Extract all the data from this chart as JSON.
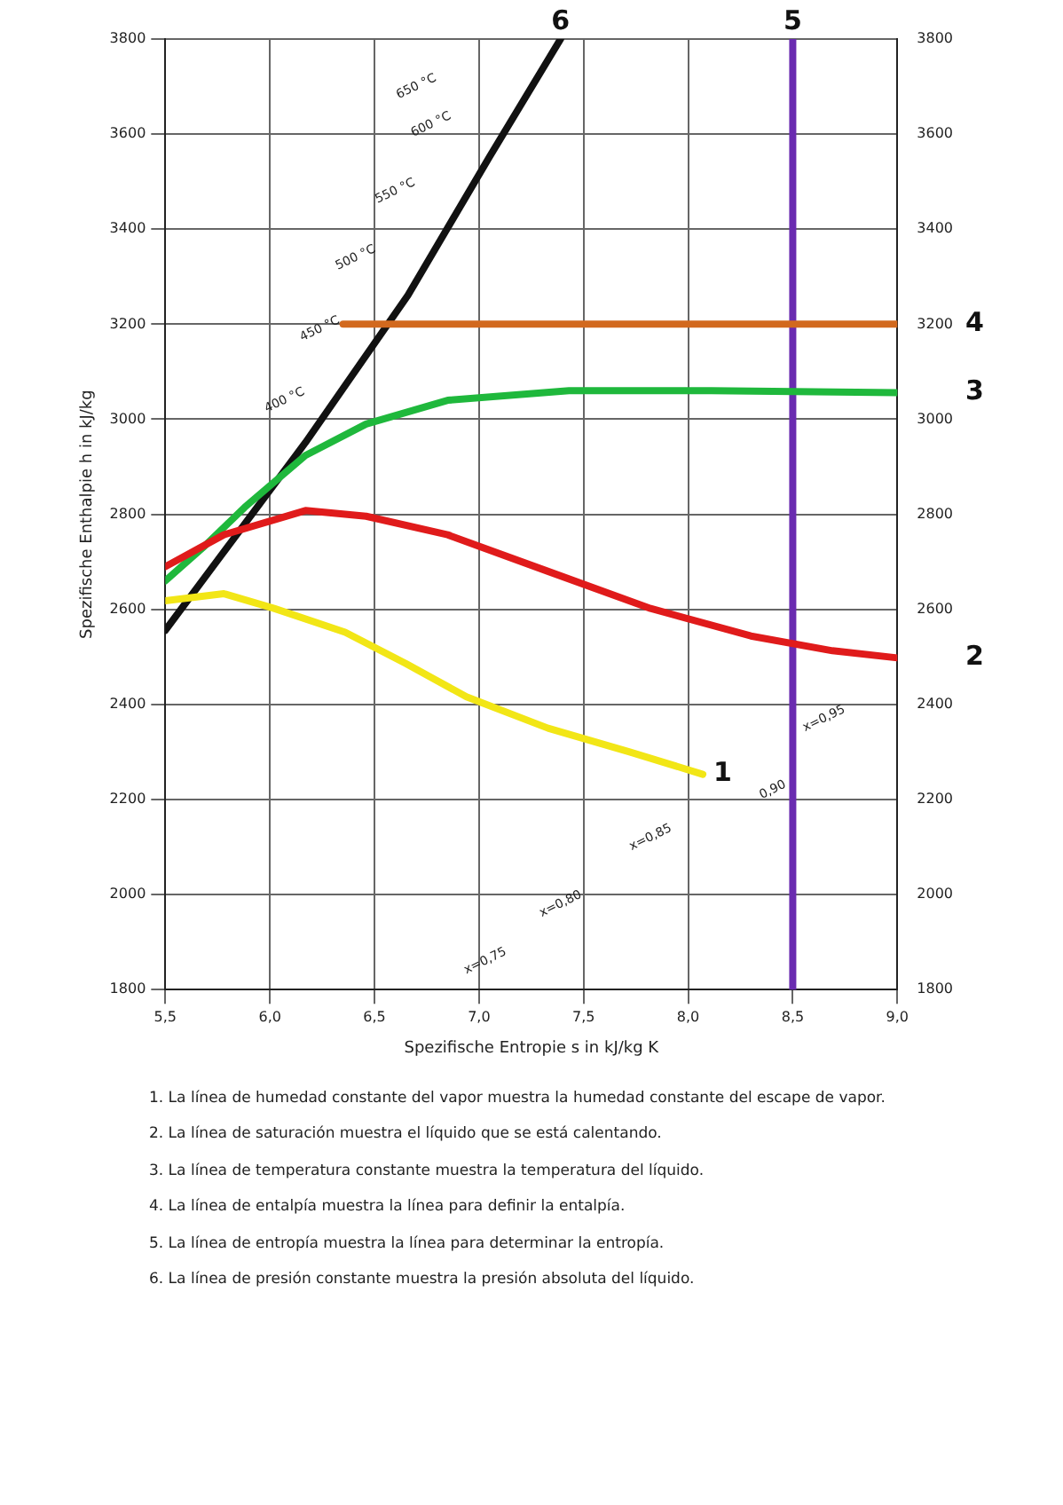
{
  "chart_data": {
    "type": "line",
    "xlabel": "Spezifische Entropie s in kJ/kg K",
    "ylabel": "Spezifische Enthalpie h in kJ/kg",
    "xlim": [
      5.5,
      9.0
    ],
    "xticks": [
      {
        "value": 5.5,
        "label": "5,5"
      },
      {
        "value": 6.0,
        "label": "6,0"
      },
      {
        "value": 6.5,
        "label": "6,5"
      },
      {
        "value": 7.0,
        "label": "7,0"
      },
      {
        "value": 7.5,
        "label": "7,5"
      },
      {
        "value": 8.0,
        "label": "8,0"
      },
      {
        "value": 8.5,
        "label": "8,5"
      },
      {
        "value": 9.0,
        "label": "9,0"
      }
    ],
    "ylim": [
      1800,
      3800
    ],
    "yticks": [
      1800,
      2000,
      2200,
      2400,
      2600,
      2800,
      3000,
      3200,
      3400,
      3600,
      3800
    ],
    "y2lim": [
      1800,
      3800
    ],
    "y2ticks": [
      1800,
      2000,
      2200,
      2400,
      2600,
      2800,
      3000,
      3200,
      3400,
      3600,
      3800
    ],
    "grid": true,
    "legend": false,
    "marker": "none",
    "line_style": "solid",
    "series": [
      {
        "name": "1",
        "color": "#f2e616",
        "x": [
          5.5,
          5.78,
          6.02,
          6.36,
          6.65,
          6.94,
          7.33,
          7.72,
          8.07
        ],
        "values": [
          2618,
          2633,
          2602,
          2552,
          2486,
          2416,
          2350,
          2300,
          2253
        ]
      },
      {
        "name": "2",
        "color": "#e01b1b",
        "x": [
          5.5,
          5.78,
          6.17,
          6.46,
          6.85,
          7.33,
          7.82,
          8.3,
          8.69,
          9.0
        ],
        "values": [
          2690,
          2757,
          2808,
          2796,
          2757,
          2680,
          2602,
          2544,
          2513,
          2498
        ]
      },
      {
        "name": "3",
        "color": "#1fb83c",
        "x": [
          5.5,
          5.68,
          5.88,
          6.17,
          6.46,
          6.85,
          7.43,
          8.11,
          9.0
        ],
        "values": [
          2660,
          2730,
          2815,
          2924,
          2990,
          3040,
          3060,
          3060,
          3056
        ]
      },
      {
        "name": "4",
        "color": "#d2691e",
        "x": [
          6.35,
          9.0
        ],
        "values": [
          3200,
          3200
        ]
      },
      {
        "name": "5",
        "color": "#6a2bb0",
        "x": [
          8.5,
          8.5
        ],
        "values": [
          1800,
          3800
        ]
      },
      {
        "name": "6",
        "color": "#111111",
        "x": [
          5.5,
          6.17,
          6.66,
          7.05,
          7.39
        ],
        "values": [
          2556,
          2951,
          3261,
          3552,
          3800
        ]
      }
    ],
    "annotations": [
      "650 °C",
      "600 °C",
      "550 °C",
      "500 °C",
      "450 °C",
      "400 °C",
      "x=0,95",
      "0,90",
      "x=0,85",
      "x=0,80",
      "x=0,75",
      "1. La línea de humedad constante del vapor muestra la humedad constante del escape de vapor.",
      "2. La línea de saturación muestra el líquido que se está calentando.",
      "3. La línea de temperatura constante muestra la temperatura del líquido.",
      "4. La línea de entalpía muestra la línea para definir la entalpía.",
      "5. La línea de entropía muestra la línea para determinar la entropía.",
      "6. La línea de presión constante muestra la presión absoluta del líquido."
    ]
  }
}
